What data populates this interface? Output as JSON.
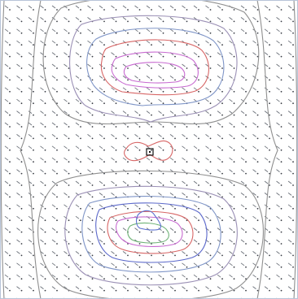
{
  "plot": {
    "title": "",
    "type": "contour-field",
    "background": "#ffffff",
    "frame_color": "#b8c4d8",
    "vector_color": "#6a6f78",
    "vector_dot_color": "#3a3e46",
    "marker_color": "#111111"
  },
  "contours": [
    {
      "level": 1,
      "color": "#8f8f8f"
    },
    {
      "level": 2,
      "color": "#9a8fb5"
    },
    {
      "level": 3,
      "color": "#7f95c7"
    },
    {
      "level": 4,
      "color": "#5a67c9"
    },
    {
      "level": 5,
      "color": "#d76666"
    },
    {
      "level": 6,
      "color": "#c76ad0"
    },
    {
      "level": 7,
      "color": "#6fb377"
    },
    {
      "level": 8,
      "color": "#5b6fd0"
    }
  ]
}
